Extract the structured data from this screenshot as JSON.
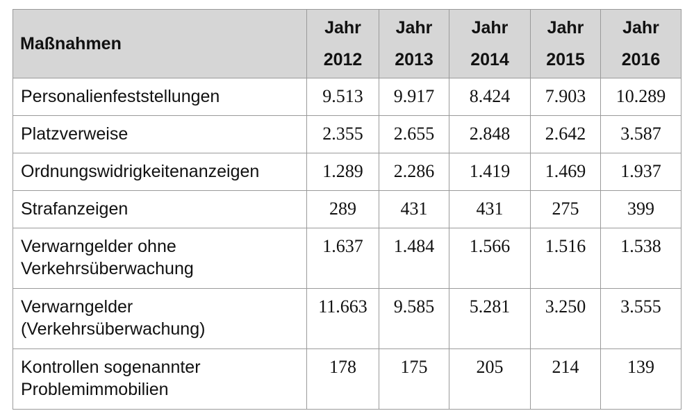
{
  "chart_data": {
    "type": "table",
    "columns": [
      {
        "prefix": "",
        "label": "Maßnahmen"
      },
      {
        "prefix": "Jahr",
        "label": "2012"
      },
      {
        "prefix": "Jahr",
        "label": "2013"
      },
      {
        "prefix": "Jahr",
        "label": "2014"
      },
      {
        "prefix": "Jahr",
        "label": "2015"
      },
      {
        "prefix": "Jahr",
        "label": "2016"
      }
    ],
    "rows": [
      {
        "label_lines": [
          "Personalienfeststellungen"
        ],
        "values": [
          "9.513",
          "9.917",
          "8.424",
          "7.903",
          "10.289"
        ]
      },
      {
        "label_lines": [
          "Platzverweise"
        ],
        "values": [
          "2.355",
          "2.655",
          "2.848",
          "2.642",
          "3.587"
        ]
      },
      {
        "label_lines": [
          "Ordnungswidrigkeitenanzeigen"
        ],
        "values": [
          "1.289",
          "2.286",
          "1.419",
          "1.469",
          "1.937"
        ]
      },
      {
        "label_lines": [
          "Strafanzeigen"
        ],
        "values": [
          "289",
          "431",
          "431",
          "275",
          "399"
        ]
      },
      {
        "label_lines": [
          "Verwarngelder ohne",
          "Verkehrsüberwachung"
        ],
        "values": [
          "1.637",
          "1.484",
          "1.566",
          "1.516",
          "1.538"
        ]
      },
      {
        "label_lines": [
          "Verwarngelder",
          "(Verkehrsüberwachung)"
        ],
        "values": [
          "11.663",
          "9.585",
          "5.281",
          "3.250",
          "3.555"
        ]
      },
      {
        "label_lines": [
          "Kontrollen sogenannter",
          "Problemimmobilien"
        ],
        "values": [
          "178",
          "175",
          "205",
          "214",
          "139"
        ]
      }
    ]
  }
}
